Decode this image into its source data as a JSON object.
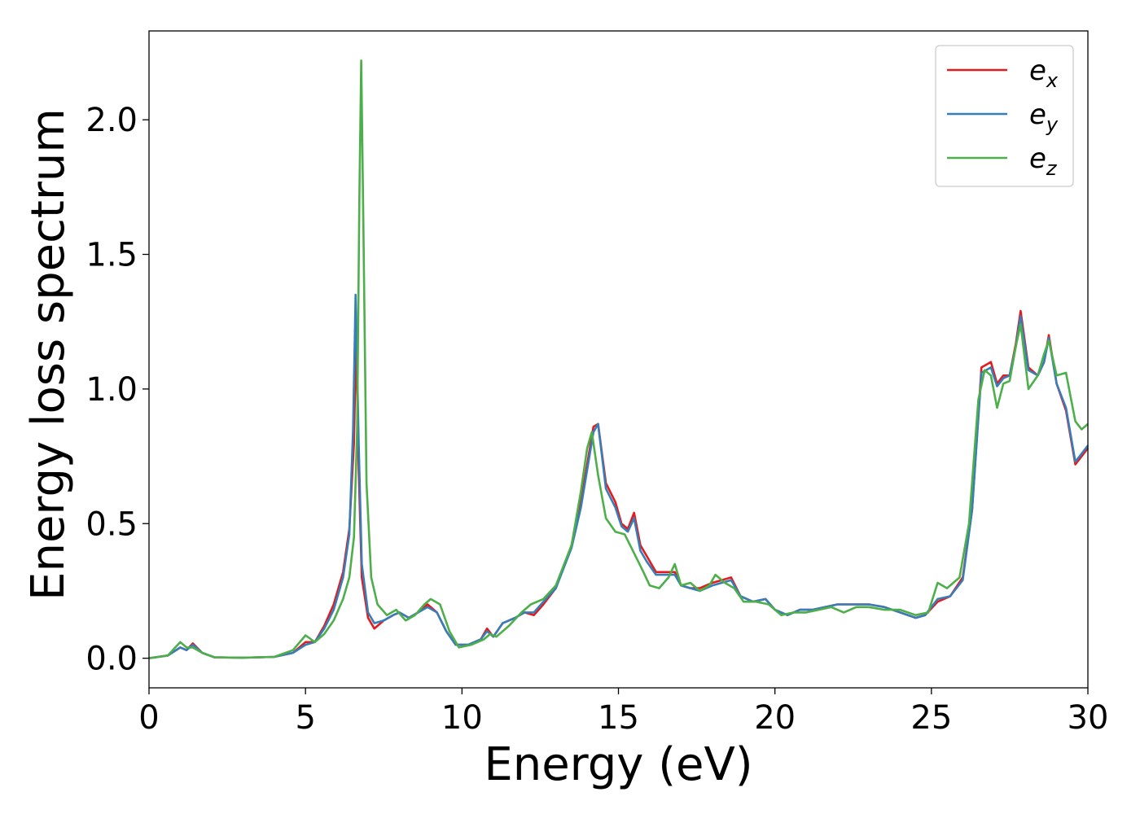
{
  "chart_data": {
    "type": "line",
    "xlabel": "Energy (eV)",
    "ylabel": "Energy loss spectrum",
    "xlim": [
      0,
      30
    ],
    "ylim": [
      -0.11,
      2.33
    ],
    "xticks": [
      "0",
      "5",
      "10",
      "15",
      "20",
      "25",
      "30"
    ],
    "yticks": [
      "0.0",
      "0.5",
      "1.0",
      "1.5",
      "2.0"
    ],
    "grid": false,
    "legend_position": "top-right",
    "series": [
      {
        "name": "e_x",
        "label_base": "e",
        "label_sub": "x",
        "color": "#e41a1c",
        "points": [
          [
            0,
            0
          ],
          [
            0.6,
            0.01
          ],
          [
            1.0,
            0.04
          ],
          [
            1.2,
            0.03
          ],
          [
            1.4,
            0.055
          ],
          [
            1.7,
            0.02
          ],
          [
            2.1,
            0.003
          ],
          [
            3.0,
            0.002
          ],
          [
            4.0,
            0.005
          ],
          [
            4.6,
            0.02
          ],
          [
            5.0,
            0.06
          ],
          [
            5.3,
            0.06
          ],
          [
            5.6,
            0.12
          ],
          [
            5.9,
            0.2
          ],
          [
            6.2,
            0.32
          ],
          [
            6.4,
            0.48
          ],
          [
            6.55,
            0.8
          ],
          [
            6.62,
            1.2
          ],
          [
            6.7,
            0.7
          ],
          [
            6.8,
            0.3
          ],
          [
            7.0,
            0.15
          ],
          [
            7.2,
            0.11
          ],
          [
            7.5,
            0.14
          ],
          [
            7.8,
            0.16
          ],
          [
            8.0,
            0.17
          ],
          [
            8.3,
            0.15
          ],
          [
            8.6,
            0.17
          ],
          [
            8.9,
            0.2
          ],
          [
            9.2,
            0.17
          ],
          [
            9.5,
            0.1
          ],
          [
            9.8,
            0.05
          ],
          [
            10.2,
            0.05
          ],
          [
            10.6,
            0.07
          ],
          [
            10.8,
            0.11
          ],
          [
            11.0,
            0.08
          ],
          [
            11.3,
            0.13
          ],
          [
            11.7,
            0.15
          ],
          [
            12.0,
            0.17
          ],
          [
            12.3,
            0.16
          ],
          [
            12.6,
            0.2
          ],
          [
            13.0,
            0.26
          ],
          [
            13.5,
            0.42
          ],
          [
            13.8,
            0.58
          ],
          [
            14.0,
            0.72
          ],
          [
            14.2,
            0.86
          ],
          [
            14.35,
            0.87
          ],
          [
            14.6,
            0.65
          ],
          [
            14.9,
            0.58
          ],
          [
            15.1,
            0.5
          ],
          [
            15.3,
            0.48
          ],
          [
            15.5,
            0.54
          ],
          [
            15.7,
            0.42
          ],
          [
            15.9,
            0.38
          ],
          [
            16.2,
            0.32
          ],
          [
            16.5,
            0.32
          ],
          [
            16.8,
            0.32
          ],
          [
            17.0,
            0.27
          ],
          [
            17.3,
            0.26
          ],
          [
            17.6,
            0.26
          ],
          [
            18.0,
            0.28
          ],
          [
            18.3,
            0.29
          ],
          [
            18.6,
            0.3
          ],
          [
            18.9,
            0.23
          ],
          [
            19.3,
            0.21
          ],
          [
            19.7,
            0.22
          ],
          [
            20.0,
            0.18
          ],
          [
            20.4,
            0.16
          ],
          [
            20.8,
            0.18
          ],
          [
            21.2,
            0.18
          ],
          [
            21.6,
            0.19
          ],
          [
            22.0,
            0.2
          ],
          [
            22.5,
            0.2
          ],
          [
            23.0,
            0.2
          ],
          [
            23.5,
            0.19
          ],
          [
            24.0,
            0.17
          ],
          [
            24.5,
            0.15
          ],
          [
            24.8,
            0.16
          ],
          [
            25.2,
            0.21
          ],
          [
            25.6,
            0.23
          ],
          [
            26.0,
            0.3
          ],
          [
            26.3,
            0.55
          ],
          [
            26.6,
            1.08
          ],
          [
            26.9,
            1.1
          ],
          [
            27.1,
            1.02
          ],
          [
            27.3,
            1.05
          ],
          [
            27.5,
            1.05
          ],
          [
            27.7,
            1.17
          ],
          [
            27.85,
            1.29
          ],
          [
            28.1,
            1.08
          ],
          [
            28.4,
            1.05
          ],
          [
            28.6,
            1.1
          ],
          [
            28.75,
            1.2
          ],
          [
            29.0,
            1.02
          ],
          [
            29.3,
            0.92
          ],
          [
            29.6,
            0.72
          ],
          [
            29.8,
            0.75
          ],
          [
            30.0,
            0.78
          ]
        ]
      },
      {
        "name": "e_y",
        "label_base": "e",
        "label_sub": "y",
        "color": "#377eb8",
        "points": [
          [
            0,
            0
          ],
          [
            0.6,
            0.01
          ],
          [
            1.0,
            0.04
          ],
          [
            1.2,
            0.03
          ],
          [
            1.4,
            0.05
          ],
          [
            1.7,
            0.02
          ],
          [
            2.1,
            0.003
          ],
          [
            3.0,
            0.002
          ],
          [
            4.0,
            0.005
          ],
          [
            4.6,
            0.02
          ],
          [
            5.0,
            0.05
          ],
          [
            5.3,
            0.06
          ],
          [
            5.6,
            0.11
          ],
          [
            5.9,
            0.18
          ],
          [
            6.2,
            0.3
          ],
          [
            6.4,
            0.46
          ],
          [
            6.52,
            0.85
          ],
          [
            6.6,
            1.35
          ],
          [
            6.7,
            0.8
          ],
          [
            6.8,
            0.35
          ],
          [
            7.0,
            0.17
          ],
          [
            7.2,
            0.13
          ],
          [
            7.5,
            0.14
          ],
          [
            7.8,
            0.16
          ],
          [
            8.0,
            0.17
          ],
          [
            8.3,
            0.15
          ],
          [
            8.6,
            0.17
          ],
          [
            8.9,
            0.19
          ],
          [
            9.2,
            0.17
          ],
          [
            9.5,
            0.1
          ],
          [
            9.8,
            0.05
          ],
          [
            10.2,
            0.05
          ],
          [
            10.6,
            0.07
          ],
          [
            10.8,
            0.1
          ],
          [
            11.0,
            0.08
          ],
          [
            11.3,
            0.13
          ],
          [
            11.7,
            0.15
          ],
          [
            12.0,
            0.17
          ],
          [
            12.3,
            0.17
          ],
          [
            12.6,
            0.21
          ],
          [
            13.0,
            0.26
          ],
          [
            13.5,
            0.41
          ],
          [
            13.8,
            0.56
          ],
          [
            14.0,
            0.7
          ],
          [
            14.2,
            0.84
          ],
          [
            14.35,
            0.87
          ],
          [
            14.6,
            0.63
          ],
          [
            14.9,
            0.56
          ],
          [
            15.1,
            0.49
          ],
          [
            15.3,
            0.47
          ],
          [
            15.5,
            0.52
          ],
          [
            15.7,
            0.4
          ],
          [
            15.9,
            0.36
          ],
          [
            16.2,
            0.31
          ],
          [
            16.5,
            0.31
          ],
          [
            16.8,
            0.31
          ],
          [
            17.0,
            0.27
          ],
          [
            17.3,
            0.26
          ],
          [
            17.6,
            0.25
          ],
          [
            18.0,
            0.27
          ],
          [
            18.3,
            0.28
          ],
          [
            18.6,
            0.29
          ],
          [
            18.9,
            0.23
          ],
          [
            19.3,
            0.21
          ],
          [
            19.7,
            0.22
          ],
          [
            20.0,
            0.18
          ],
          [
            20.4,
            0.16
          ],
          [
            20.8,
            0.18
          ],
          [
            21.2,
            0.18
          ],
          [
            21.6,
            0.19
          ],
          [
            22.0,
            0.2
          ],
          [
            22.5,
            0.2
          ],
          [
            23.0,
            0.2
          ],
          [
            23.5,
            0.19
          ],
          [
            24.0,
            0.17
          ],
          [
            24.5,
            0.15
          ],
          [
            24.8,
            0.16
          ],
          [
            25.2,
            0.22
          ],
          [
            25.6,
            0.23
          ],
          [
            26.0,
            0.29
          ],
          [
            26.3,
            0.55
          ],
          [
            26.6,
            1.06
          ],
          [
            26.9,
            1.08
          ],
          [
            27.1,
            1.01
          ],
          [
            27.3,
            1.04
          ],
          [
            27.5,
            1.05
          ],
          [
            27.7,
            1.16
          ],
          [
            27.85,
            1.27
          ],
          [
            28.1,
            1.07
          ],
          [
            28.4,
            1.05
          ],
          [
            28.6,
            1.1
          ],
          [
            28.75,
            1.19
          ],
          [
            29.0,
            1.02
          ],
          [
            29.3,
            0.93
          ],
          [
            29.6,
            0.73
          ],
          [
            29.8,
            0.76
          ],
          [
            30.0,
            0.79
          ]
        ]
      },
      {
        "name": "e_z",
        "label_base": "e",
        "label_sub": "z",
        "color": "#4daf4a",
        "points": [
          [
            0,
            0
          ],
          [
            0.6,
            0.01
          ],
          [
            1.0,
            0.06
          ],
          [
            1.2,
            0.04
          ],
          [
            1.4,
            0.04
          ],
          [
            1.7,
            0.02
          ],
          [
            2.1,
            0.003
          ],
          [
            3.0,
            0.002
          ],
          [
            4.0,
            0.005
          ],
          [
            4.6,
            0.03
          ],
          [
            5.0,
            0.085
          ],
          [
            5.3,
            0.06
          ],
          [
            5.6,
            0.09
          ],
          [
            5.9,
            0.14
          ],
          [
            6.2,
            0.22
          ],
          [
            6.4,
            0.3
          ],
          [
            6.55,
            0.45
          ],
          [
            6.65,
            0.85
          ],
          [
            6.72,
            1.7
          ],
          [
            6.78,
            2.22
          ],
          [
            6.85,
            1.6
          ],
          [
            6.95,
            0.65
          ],
          [
            7.1,
            0.3
          ],
          [
            7.3,
            0.2
          ],
          [
            7.6,
            0.16
          ],
          [
            7.9,
            0.18
          ],
          [
            8.2,
            0.14
          ],
          [
            8.5,
            0.16
          ],
          [
            8.8,
            0.2
          ],
          [
            9.0,
            0.22
          ],
          [
            9.3,
            0.2
          ],
          [
            9.6,
            0.1
          ],
          [
            9.9,
            0.04
          ],
          [
            10.3,
            0.05
          ],
          [
            10.7,
            0.07
          ],
          [
            10.9,
            0.09
          ],
          [
            11.1,
            0.08
          ],
          [
            11.5,
            0.12
          ],
          [
            11.9,
            0.17
          ],
          [
            12.2,
            0.2
          ],
          [
            12.6,
            0.22
          ],
          [
            13.0,
            0.27
          ],
          [
            13.5,
            0.42
          ],
          [
            13.8,
            0.62
          ],
          [
            14.0,
            0.78
          ],
          [
            14.15,
            0.84
          ],
          [
            14.35,
            0.68
          ],
          [
            14.6,
            0.52
          ],
          [
            14.9,
            0.47
          ],
          [
            15.2,
            0.46
          ],
          [
            15.5,
            0.39
          ],
          [
            15.8,
            0.32
          ],
          [
            16.0,
            0.27
          ],
          [
            16.3,
            0.26
          ],
          [
            16.6,
            0.3
          ],
          [
            16.8,
            0.35
          ],
          [
            17.0,
            0.27
          ],
          [
            17.3,
            0.28
          ],
          [
            17.6,
            0.25
          ],
          [
            17.9,
            0.27
          ],
          [
            18.1,
            0.31
          ],
          [
            18.4,
            0.28
          ],
          [
            18.7,
            0.26
          ],
          [
            19.0,
            0.21
          ],
          [
            19.4,
            0.21
          ],
          [
            19.8,
            0.2
          ],
          [
            20.2,
            0.16
          ],
          [
            20.6,
            0.17
          ],
          [
            21.0,
            0.17
          ],
          [
            21.4,
            0.18
          ],
          [
            21.8,
            0.19
          ],
          [
            22.2,
            0.17
          ],
          [
            22.6,
            0.19
          ],
          [
            23.0,
            0.19
          ],
          [
            23.5,
            0.18
          ],
          [
            24.0,
            0.18
          ],
          [
            24.5,
            0.16
          ],
          [
            24.9,
            0.17
          ],
          [
            25.2,
            0.28
          ],
          [
            25.5,
            0.26
          ],
          [
            25.9,
            0.3
          ],
          [
            26.2,
            0.5
          ],
          [
            26.5,
            0.96
          ],
          [
            26.7,
            1.07
          ],
          [
            26.9,
            1.05
          ],
          [
            27.1,
            0.93
          ],
          [
            27.3,
            1.02
          ],
          [
            27.5,
            1.03
          ],
          [
            27.7,
            1.16
          ],
          [
            27.85,
            1.24
          ],
          [
            28.1,
            1.0
          ],
          [
            28.4,
            1.05
          ],
          [
            28.6,
            1.13
          ],
          [
            28.75,
            1.18
          ],
          [
            29.0,
            1.05
          ],
          [
            29.3,
            1.06
          ],
          [
            29.6,
            0.88
          ],
          [
            29.8,
            0.85
          ],
          [
            30.0,
            0.87
          ]
        ]
      }
    ]
  }
}
